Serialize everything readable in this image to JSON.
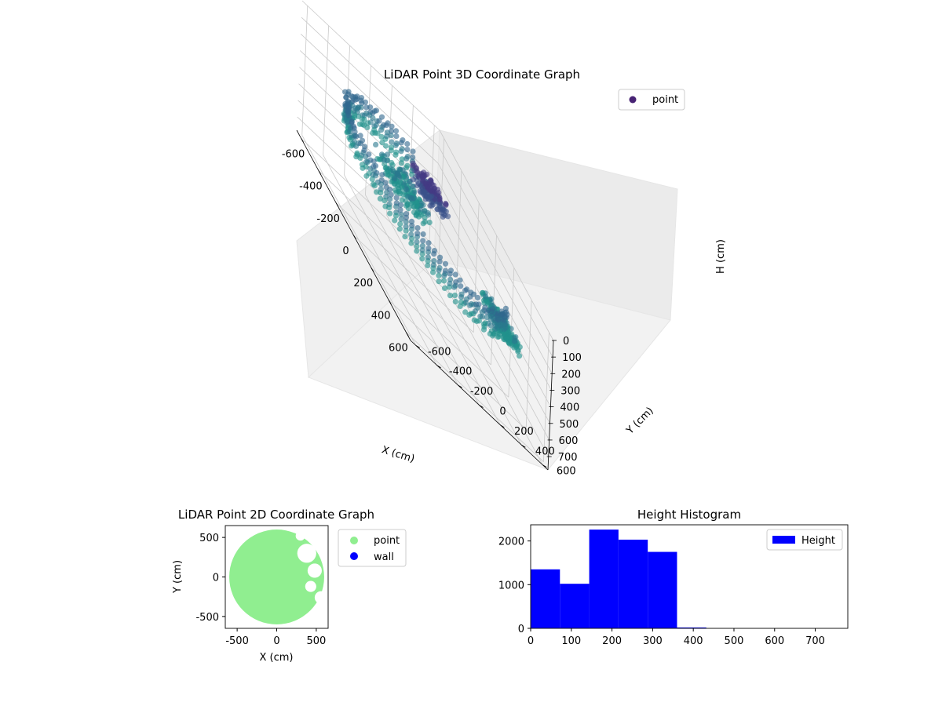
{
  "chart_data": [
    {
      "type": "scatter",
      "projection": "3d",
      "title": "LiDAR Point 3D Coordinate Graph",
      "xlabel": "X (cm)",
      "ylabel": "Y (cm)",
      "zlabel": "H (cm)",
      "x_ticks": [
        -600,
        -400,
        -200,
        0,
        200,
        400,
        600
      ],
      "y_ticks": [
        -600,
        -400,
        -200,
        0,
        200,
        400,
        600
      ],
      "z_ticks": [
        0,
        100,
        200,
        300,
        400,
        500,
        600,
        700
      ],
      "xlim": [
        -650,
        650
      ],
      "ylim": [
        -650,
        650
      ],
      "zlim": [
        780,
        0
      ],
      "z_inverted": true,
      "legend": {
        "position": "top-right",
        "entries": [
          "point"
        ]
      },
      "colormap": "viridis",
      "series": [
        {
          "name": "point",
          "color": "#482374",
          "regions": [
            {
              "shape": "ring",
              "radius": [
                560,
                600
              ],
              "h": [
                200,
                340
              ],
              "theta_deg": [
                150,
                410
              ]
            },
            {
              "shape": "cluster",
              "center": [
                -40,
                60
              ],
              "spread": [
                80,
                120
              ],
              "h": [
                80,
                180
              ]
            },
            {
              "shape": "cluster",
              "center": [
                -200,
                -40
              ],
              "spread": [
                150,
                150
              ],
              "h": [
                280,
                360
              ]
            },
            {
              "shape": "cluster",
              "center": [
                350,
                430
              ],
              "spread": [
                140,
                80
              ],
              "h": [
                290,
                360
              ]
            }
          ]
        }
      ]
    },
    {
      "type": "scatter",
      "title": "LiDAR Point 2D Coordinate Graph",
      "xlabel": "X (cm)",
      "ylabel": "Y (cm)",
      "xlim": [
        -650,
        650
      ],
      "ylim": [
        -650,
        650
      ],
      "x_ticks": [
        -500,
        0,
        500
      ],
      "y_ticks": [
        -500,
        0,
        500
      ],
      "legend": {
        "position": "outside-right",
        "entries": [
          "point",
          "wall"
        ]
      },
      "series": [
        {
          "name": "point",
          "color": "#90ee90",
          "shape": "disc",
          "radius": 600
        },
        {
          "name": "wall",
          "color": "#0000ff",
          "values": []
        }
      ]
    },
    {
      "type": "bar",
      "subtype": "histogram",
      "title": "Height Histogram",
      "xlabel": "",
      "ylabel": "",
      "xlim": [
        0,
        780
      ],
      "ylim": [
        0,
        2370
      ],
      "x_ticks": [
        0,
        100,
        200,
        300,
        400,
        500,
        600,
        700
      ],
      "y_ticks": [
        0,
        1000,
        2000
      ],
      "bin_edges": [
        0,
        72,
        144,
        216,
        288,
        360,
        432,
        504,
        576,
        648,
        720
      ],
      "values": [
        1350,
        1020,
        2260,
        2030,
        1750,
        20,
        0,
        0,
        0,
        0
      ],
      "legend": {
        "position": "top-right",
        "entries": [
          "Height"
        ]
      },
      "series": [
        {
          "name": "Height",
          "color": "#0000ff"
        }
      ]
    }
  ]
}
